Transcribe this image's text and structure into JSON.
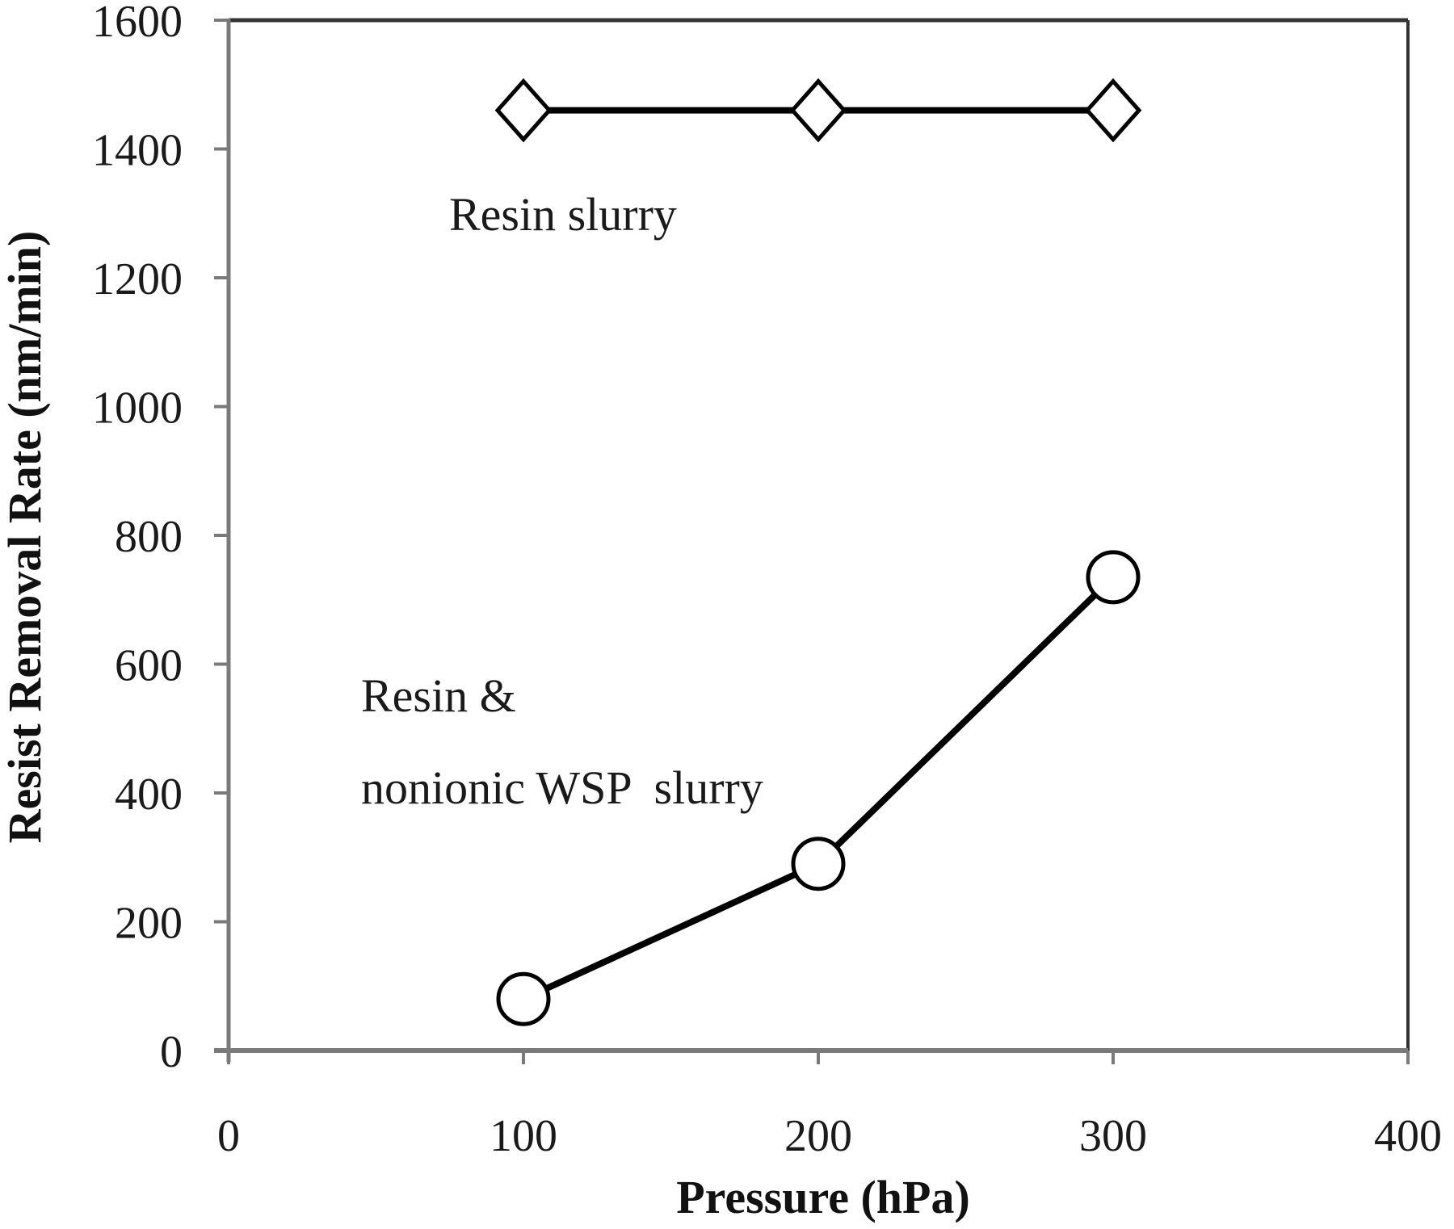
{
  "chart_data": {
    "type": "line",
    "title": "",
    "xlabel": "Pressure (hPa)",
    "ylabel": "Resist Removal Rate (nm/min)",
    "xlim": [
      0,
      400
    ],
    "ylim": [
      0,
      1600
    ],
    "x_ticks": [
      0,
      100,
      200,
      300,
      400
    ],
    "y_ticks": [
      0,
      200,
      400,
      600,
      800,
      1000,
      1200,
      1400,
      1600
    ],
    "grid": false,
    "legend": "none (inline annotations)",
    "x": [
      100,
      200,
      300
    ],
    "series": [
      {
        "name": "Resin slurry",
        "marker": "open-diamond",
        "values": [
          1460,
          1460,
          1460
        ]
      },
      {
        "name": "Resin & nonionic WSP slurry",
        "marker": "open-circle",
        "values": [
          80,
          290,
          735
        ]
      }
    ],
    "annotations": [
      {
        "text": "Resin slurry",
        "near_series": 0
      },
      {
        "text_lines": [
          "Resin &",
          "nonionic WSP  slurry"
        ],
        "near_series": 1
      }
    ]
  },
  "labels": {
    "xlabel": "Pressure (hPa)",
    "ylabel": "Resist Removal Rate (nm/min)",
    "x_ticks": [
      "0",
      "100",
      "200",
      "300",
      "400"
    ],
    "y_ticks": [
      "0",
      "200",
      "400",
      "600",
      "800",
      "1000",
      "1200",
      "1400",
      "1600"
    ],
    "annotation_resin": "Resin slurry",
    "annotation_wsp_line1": "Resin &",
    "annotation_wsp_line2": "nonionic WSP  slurry"
  },
  "colors": {
    "line": "#000000",
    "frame": "#333333",
    "axis": "#7a7a7a",
    "marker_fill": "#ffffff",
    "text": "#1a1a1a"
  }
}
